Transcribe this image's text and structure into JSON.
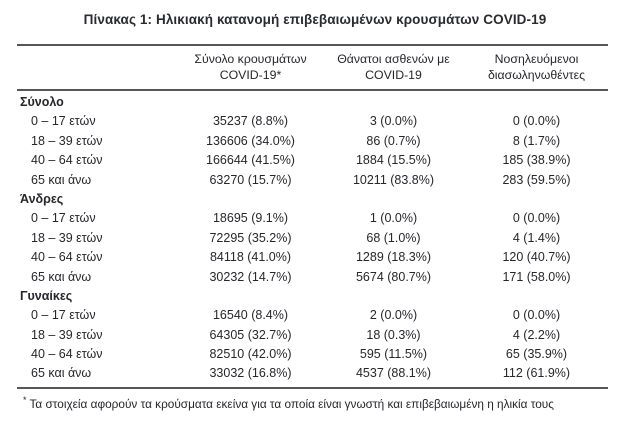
{
  "title": "Πίνακας 1: Ηλικιακή κατανομή επιβεβαιωμένων κρουσμάτων COVID-19",
  "table": {
    "columns": [
      {
        "line1": "Σύνολο κρουσμάτων",
        "line2": "COVID-19*"
      },
      {
        "line1": "Θάνατοι ασθενών με",
        "line2": "COVID-19"
      },
      {
        "line1": "Νοσηλευόμενοι",
        "line2": "διασωληνωθέντες"
      }
    ],
    "sections": [
      {
        "label": "Σύνολο",
        "rows": [
          {
            "label": "0 – 17 ετών",
            "values": [
              "35237 (8.8%)",
              "3 (0.0%)",
              "0 (0.0%)"
            ]
          },
          {
            "label": "18 – 39 ετών",
            "values": [
              "136606 (34.0%)",
              "86 (0.7%)",
              "8 (1.7%)"
            ]
          },
          {
            "label": "40 – 64 ετών",
            "values": [
              "166644 (41.5%)",
              "1884 (15.5%)",
              "185 (38.9%)"
            ]
          },
          {
            "label": "65 και άνω",
            "values": [
              "63270 (15.7%)",
              "10211 (83.8%)",
              "283 (59.5%)"
            ]
          }
        ]
      },
      {
        "label": "Άνδρες",
        "rows": [
          {
            "label": "0 – 17 ετών",
            "values": [
              "18695 (9.1%)",
              "1 (0.0%)",
              "0 (0.0%)"
            ]
          },
          {
            "label": "18 – 39 ετών",
            "values": [
              "72295 (35.2%)",
              "68 (1.0%)",
              "4 (1.4%)"
            ]
          },
          {
            "label": "40 – 64 ετών",
            "values": [
              "84118 (41.0%)",
              "1289 (18.3%)",
              "120 (40.7%)"
            ]
          },
          {
            "label": "65 και άνω",
            "values": [
              "30232 (14.7%)",
              "5674 (80.7%)",
              "171 (58.0%)"
            ]
          }
        ]
      },
      {
        "label": "Γυναίκες",
        "rows": [
          {
            "label": "0 – 17 ετών",
            "values": [
              "16540 (8.4%)",
              "2 (0.0%)",
              "0 (0.0%)"
            ]
          },
          {
            "label": "18 – 39 ετών",
            "values": [
              "64305 (32.7%)",
              "18 (0.3%)",
              "4 (2.2%)"
            ]
          },
          {
            "label": "40 – 64 ετών",
            "values": [
              "82510 (42.0%)",
              "595 (11.5%)",
              "65 (35.9%)"
            ]
          },
          {
            "label": "65 και άνω",
            "values": [
              "33032 (16.8%)",
              "4537 (88.1%)",
              "112 (61.9%)"
            ]
          }
        ]
      }
    ],
    "footnote_marker": "*",
    "footnote": "Τα στοιχεία αφορούν τα κρούσματα εκείνα για τα οποία είναι γνωστή και επιβεβαιωμένη η ηλικία τους"
  },
  "colors": {
    "text": "#26272b",
    "rule": "#55565a",
    "background": "#ffffff"
  }
}
